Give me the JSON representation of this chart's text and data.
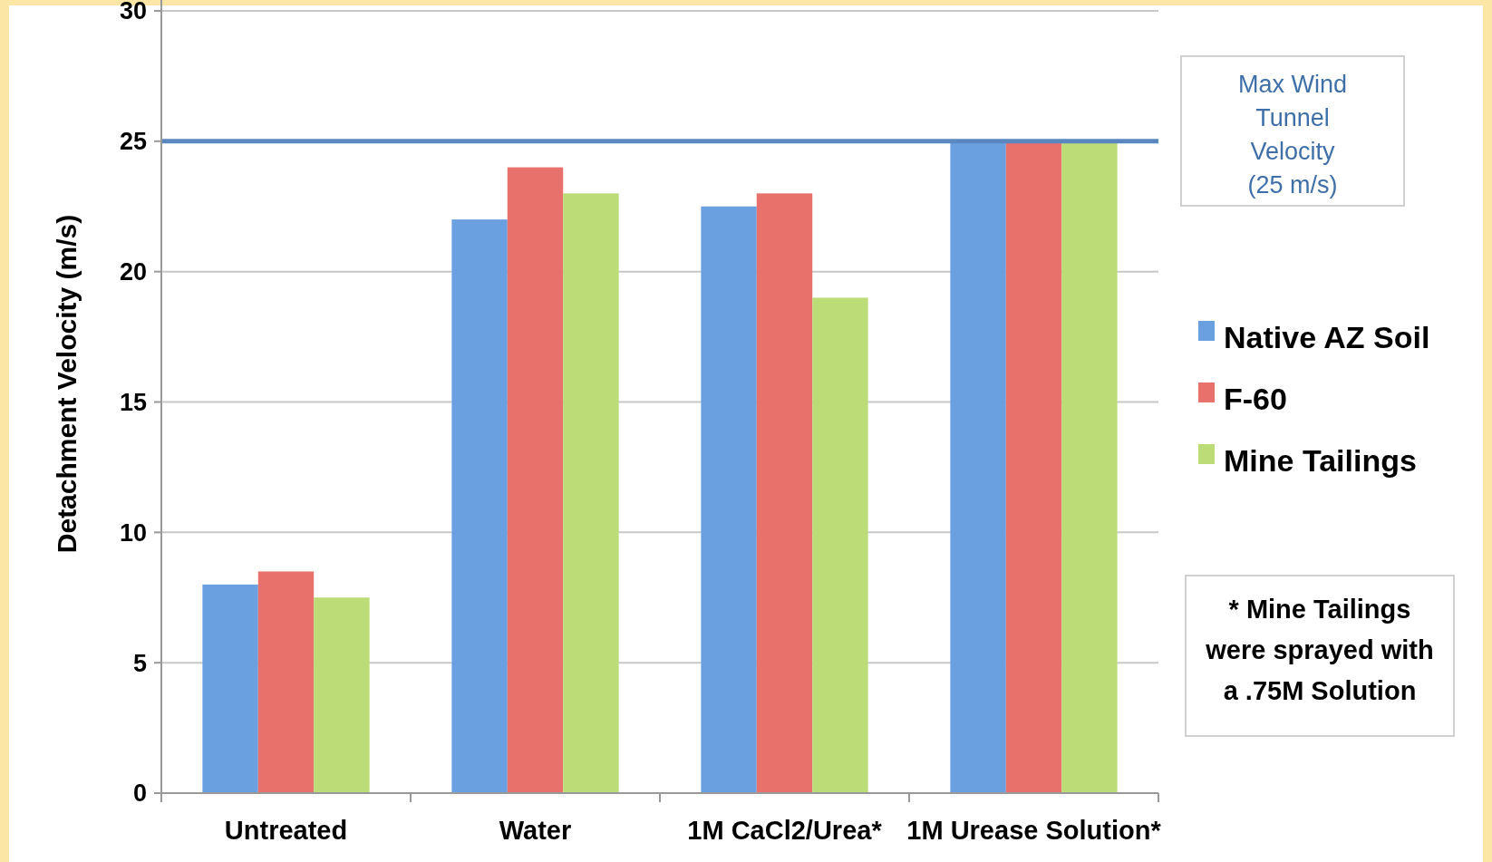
{
  "chart_data": {
    "type": "bar",
    "ylabel": "Detachment Velocity (m/s)",
    "categories": [
      "Untreated",
      "Water",
      "1M CaCl2/Urea*",
      "1M Urease Solution*"
    ],
    "series": [
      {
        "name": "Native AZ Soil",
        "color": "#6a9fe0",
        "values": [
          8,
          22,
          22.5,
          25
        ]
      },
      {
        "name": "F-60",
        "color": "#e8716b",
        "values": [
          8.5,
          24,
          23,
          25
        ]
      },
      {
        "name": "Mine Tailings",
        "color": "#bcdc78",
        "values": [
          7.5,
          23,
          19,
          25
        ]
      }
    ],
    "ylim": [
      0,
      30
    ],
    "yticks": [
      0,
      5,
      10,
      15,
      20,
      25,
      30
    ],
    "grid": "y",
    "legend": "right",
    "ref_lines": [
      {
        "axis": "y",
        "value": 25,
        "label": "Max Wind Tunnel Velocity (25 m/s)",
        "color": "#5a87c0"
      }
    ],
    "annotations": [
      "* Mine Tailings were sprayed with a .75M Solution"
    ]
  }
}
